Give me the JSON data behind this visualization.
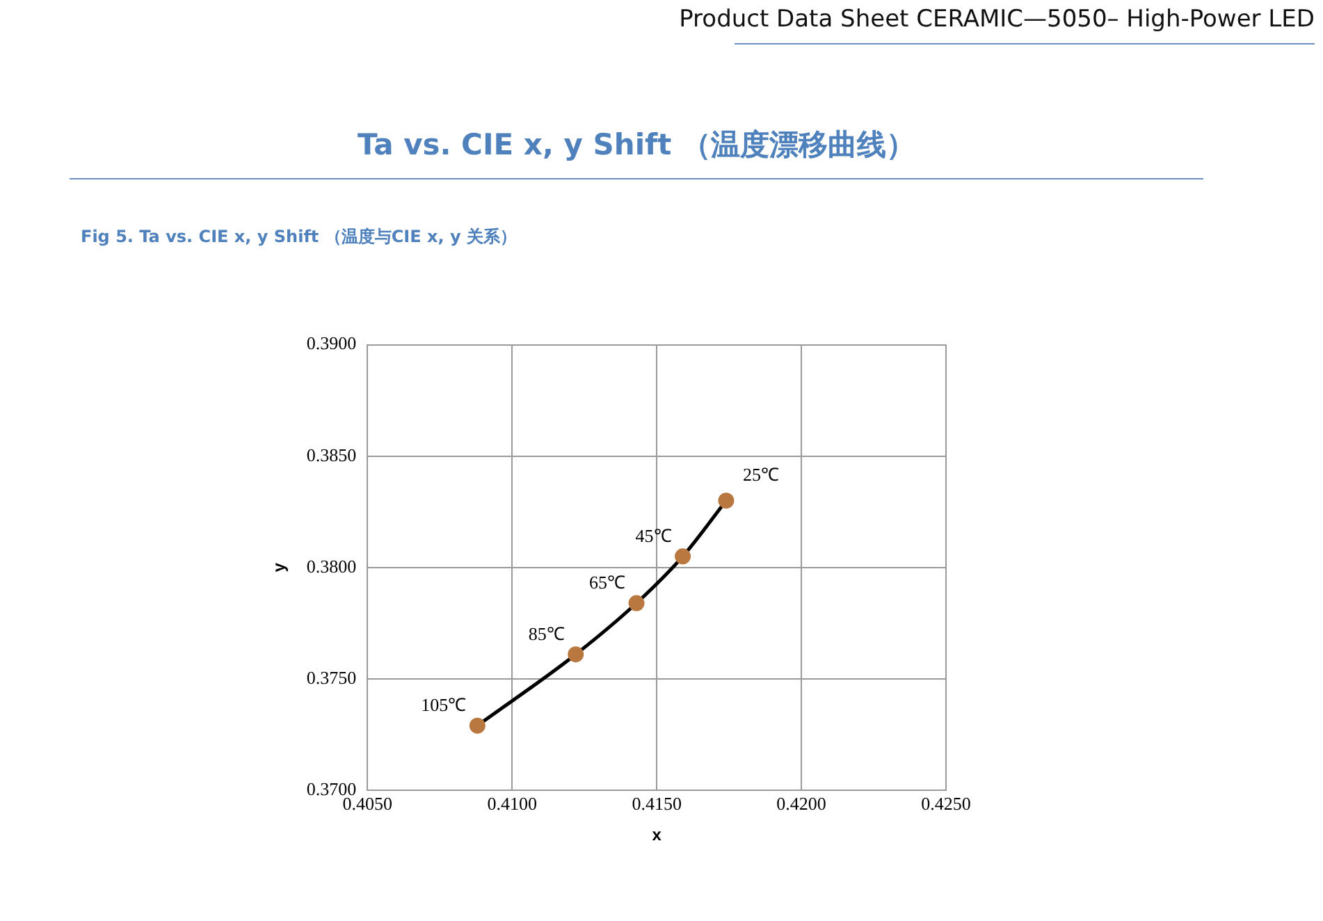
{
  "chart_data": {
    "type": "line",
    "title": "Ta vs. CIE x, y Shift （温度漂移曲线）",
    "subtitle": "Fig 5. Ta vs. CIE x, y Shift （温度与CIE x, y 关系）",
    "xlabel": "x",
    "ylabel": "y",
    "x": [
      0.4088,
      0.4122,
      0.4143,
      0.4159,
      0.4174
    ],
    "series": [
      {
        "color": "#b87840",
        "values": [
          0.3729,
          0.3761,
          0.3784,
          0.3805,
          0.383
        ]
      }
    ],
    "xlim": [
      0.405,
      0.425
    ],
    "xticks": [
      {
        "value": 0.405,
        "label": "0.4050"
      },
      {
        "value": 0.41,
        "label": "0.4100"
      },
      {
        "value": 0.415,
        "label": "0.4150"
      },
      {
        "value": 0.42,
        "label": "0.4200"
      },
      {
        "value": 0.425,
        "label": "0.4250"
      }
    ],
    "ylim": [
      0.37,
      0.39
    ],
    "yticks": [
      {
        "value": 0.37,
        "label": "0.3700"
      },
      {
        "value": 0.375,
        "label": "0.3750"
      },
      {
        "value": 0.38,
        "label": "0.3800"
      },
      {
        "value": 0.385,
        "label": "0.3850"
      },
      {
        "value": 0.39,
        "label": "0.3900"
      }
    ],
    "grid": true,
    "legend": false,
    "marker": "circle",
    "line_style": "solid",
    "annotations": [
      "Product Data Sheet CERAMIC—5050– High-Power LED",
      {
        "text": "105℃",
        "x": 0.4088,
        "y": 0.3729
      },
      {
        "text": "85℃",
        "x": 0.4122,
        "y": 0.3761
      },
      {
        "text": "65℃",
        "x": 0.4143,
        "y": 0.3784
      },
      {
        "text": "45℃",
        "x": 0.4159,
        "y": 0.3805
      },
      {
        "text": "25℃",
        "x": 0.4174,
        "y": 0.383
      }
    ]
  }
}
